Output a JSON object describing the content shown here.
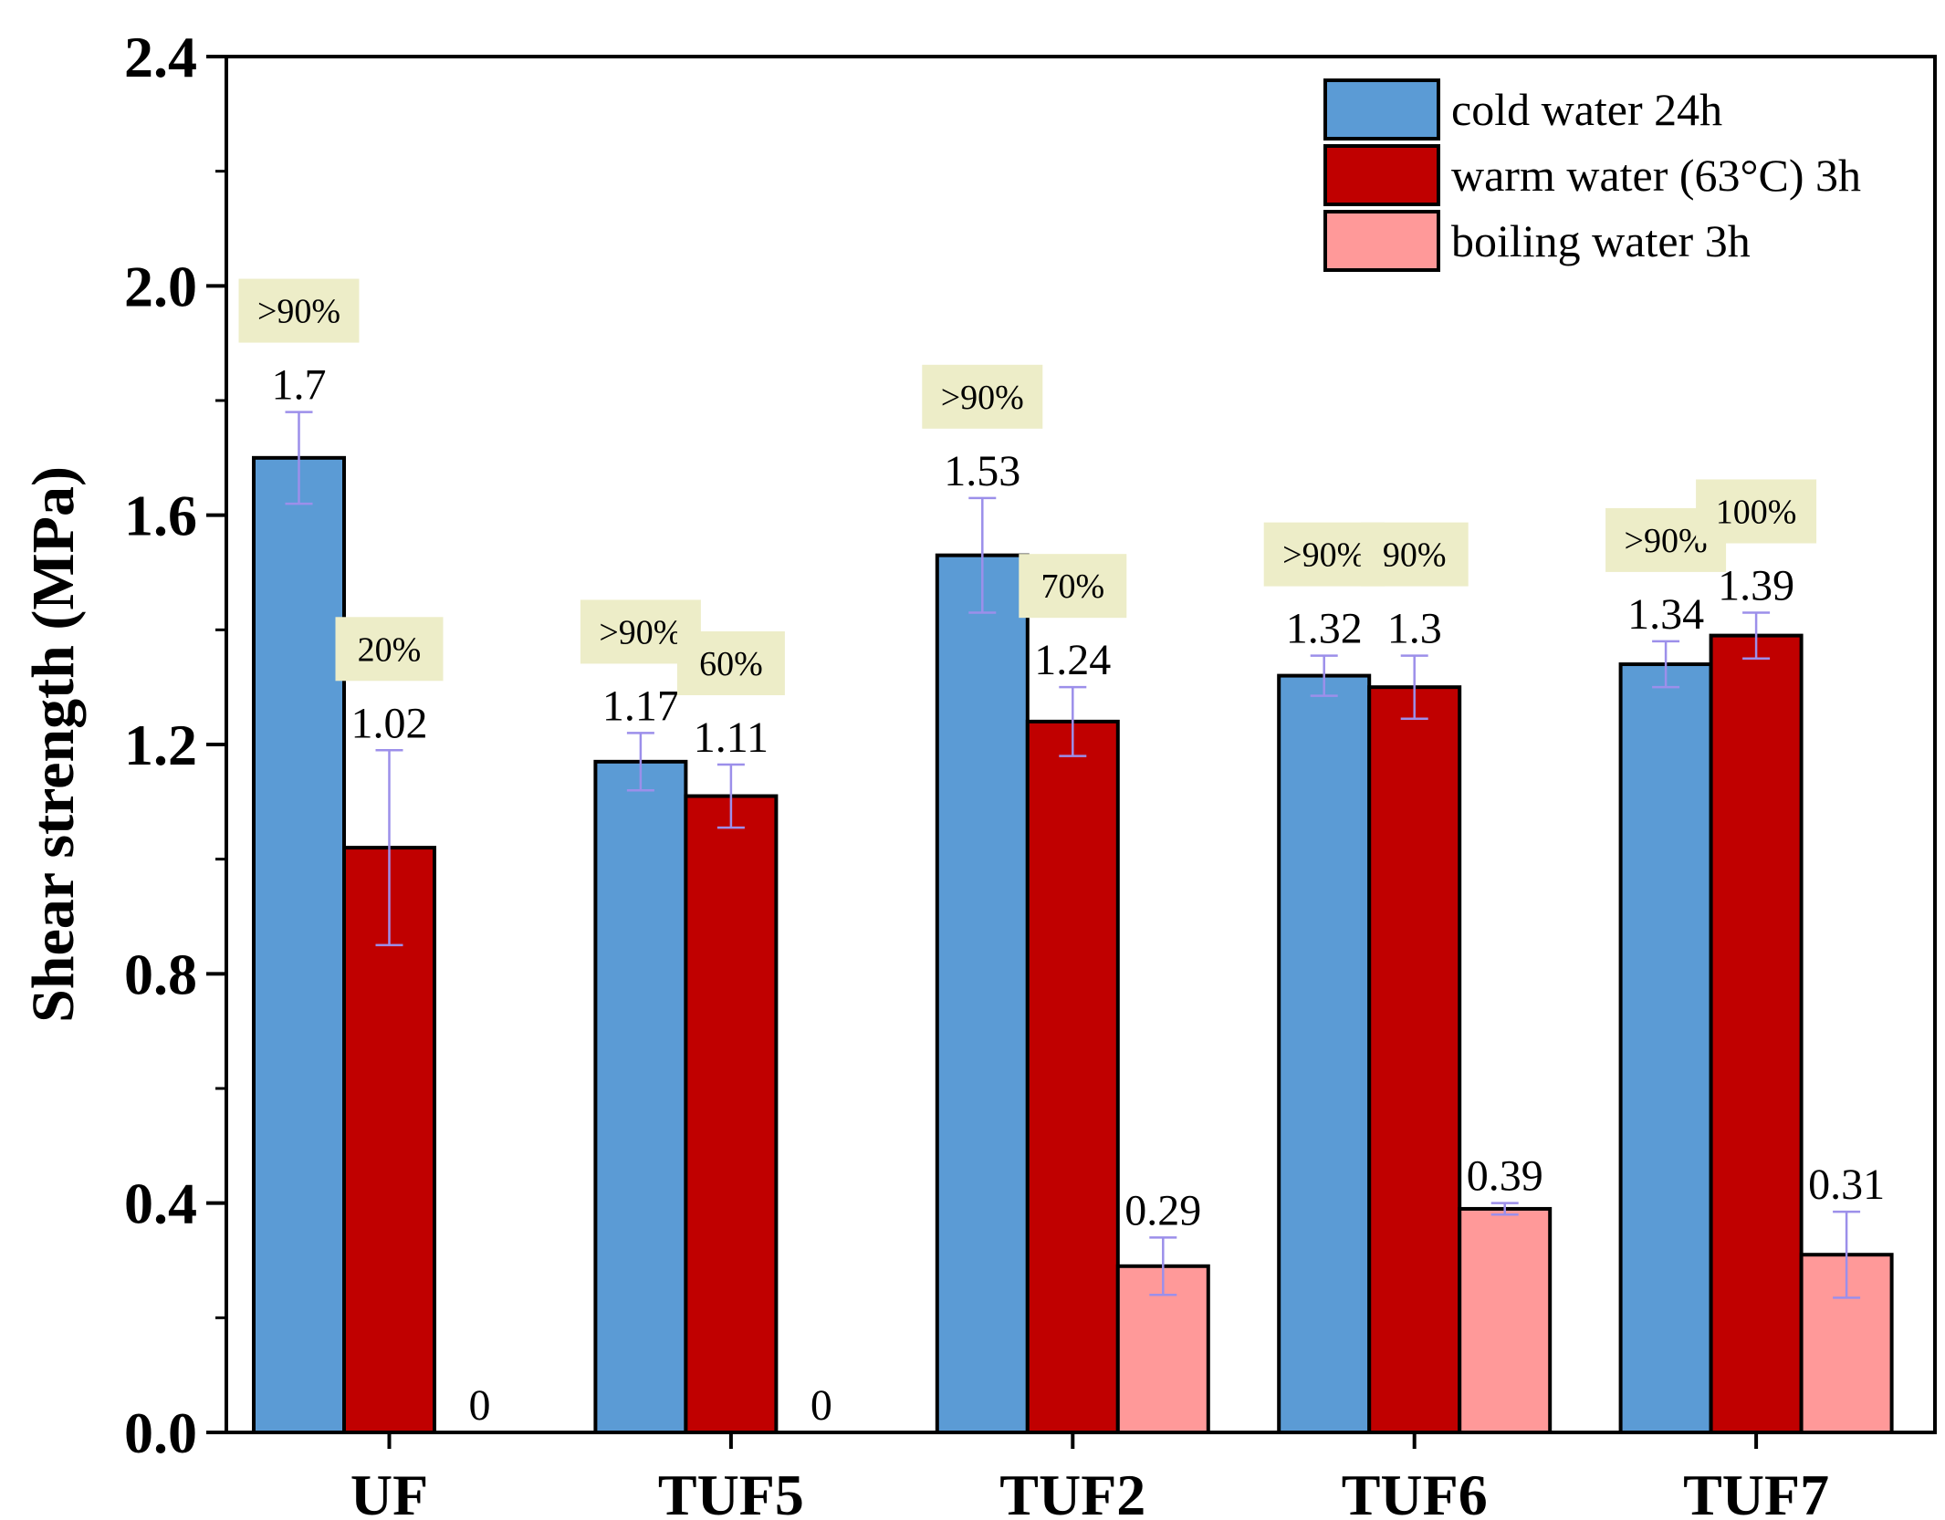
{
  "chart_data": {
    "type": "bar",
    "title": "",
    "xlabel": "",
    "ylabel": "Shear strength (MPa)",
    "ylim": [
      0,
      2.4
    ],
    "yticks": [
      "0.0",
      "0.4",
      "0.8",
      "1.2",
      "1.6",
      "2.0",
      "2.4"
    ],
    "categories": [
      "UF",
      "TUF5",
      "TUF2",
      "TUF6",
      "TUF7"
    ],
    "legend_position": "top-right",
    "series": [
      {
        "name": "cold water 24h",
        "color": "#5B9BD5",
        "values": [
          1.7,
          1.17,
          1.53,
          1.32,
          1.34
        ],
        "labels": [
          "1.7",
          "1.17",
          "1.53",
          "1.32",
          "1.34"
        ],
        "errors": [
          0.08,
          0.05,
          0.1,
          0.035,
          0.04
        ],
        "annotations": [
          ">90%",
          ">90%",
          ">90%",
          ">90%",
          ">90%"
        ]
      },
      {
        "name": "warm water (63°C) 3h",
        "color": "#C00000",
        "values": [
          1.02,
          1.11,
          1.24,
          1.3,
          1.39
        ],
        "labels": [
          "1.02",
          "1.11",
          "1.24",
          "1.3",
          "1.39"
        ],
        "errors": [
          0.17,
          0.055,
          0.06,
          0.055,
          0.04
        ],
        "annotations": [
          "20%",
          "60%",
          "70%",
          "90%",
          "100%"
        ]
      },
      {
        "name": "boiling water 3h",
        "color": "#FF9999",
        "values": [
          0,
          0,
          0.29,
          0.39,
          0.31
        ],
        "labels": [
          "0",
          "0",
          "0.29",
          "0.39",
          "0.31"
        ],
        "errors": [
          0,
          0,
          0.05,
          0.01,
          0.075
        ],
        "annotations": [
          "",
          "",
          "",
          "",
          ""
        ]
      }
    ],
    "annotation_bg": "#EDEDC8",
    "error_bar_color": "#9C8FEA"
  }
}
